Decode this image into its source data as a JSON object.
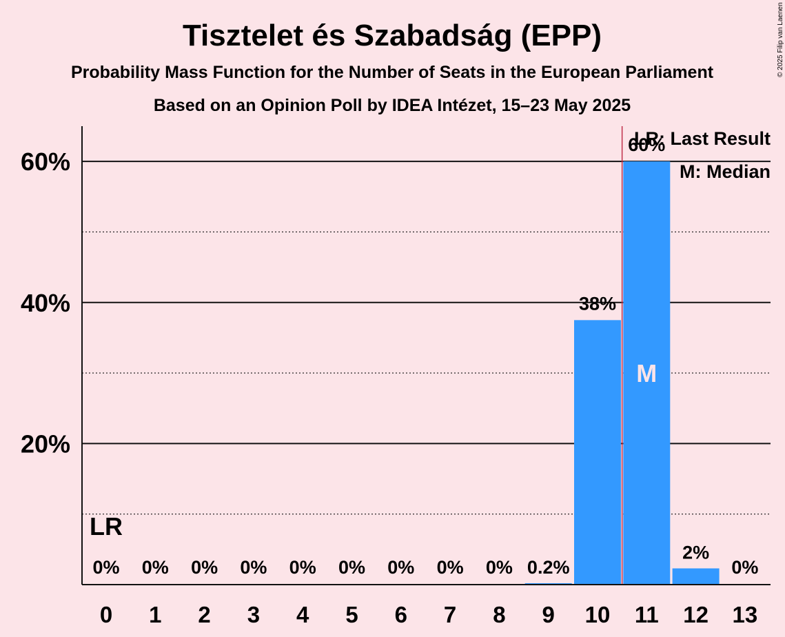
{
  "chart_data": {
    "type": "bar",
    "title": "Tisztelet és Szabadság (EPP)",
    "subtitle": "Probability Mass Function for the Number of Seats in the European Parliament",
    "subtitle2": "Based on an Opinion Poll by IDEA Intézet, 15–23 May 2025",
    "copyright": "© 2025 Filip van Laenen",
    "categories": [
      "0",
      "1",
      "2",
      "3",
      "4",
      "5",
      "6",
      "7",
      "8",
      "9",
      "10",
      "11",
      "12",
      "13"
    ],
    "values": [
      0,
      0,
      0,
      0,
      0,
      0,
      0,
      0,
      0,
      0.2,
      37.5,
      60,
      2.3,
      0
    ],
    "value_labels": [
      "0%",
      "0%",
      "0%",
      "0%",
      "0%",
      "0%",
      "0%",
      "0%",
      "0%",
      "0.2%",
      "38%",
      "60%",
      "2%",
      "0%"
    ],
    "ylim": [
      0,
      65
    ],
    "yticks": [
      20,
      40,
      60
    ],
    "ytick_labels": [
      "20%",
      "40%",
      "60%"
    ],
    "minor_gridlines": [
      10,
      30,
      50
    ],
    "last_result_index": 0,
    "last_result_marker": "LR",
    "median_index": 11,
    "median_marker": "M",
    "majority_line_after_index": 10,
    "legend": {
      "last_result": "LR: Last Result",
      "median": "M: Median",
      "position": "top-right"
    },
    "colors": {
      "bar": "#3399ff",
      "median_text": "#fce4e8",
      "background": "#fce4e8",
      "majority_line": "#c0304a",
      "axis": "#111111"
    }
  }
}
